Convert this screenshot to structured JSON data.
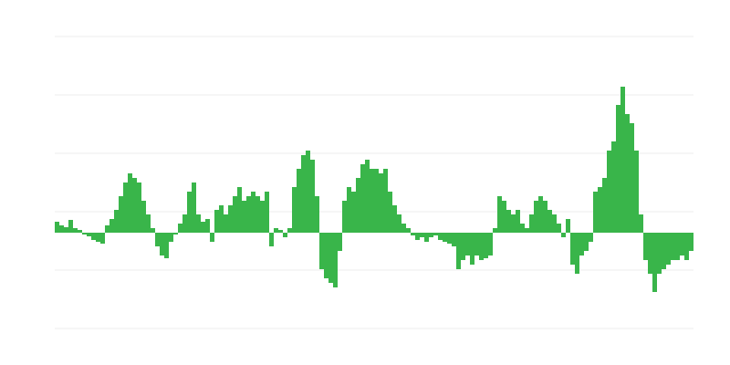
{
  "chart_data": {
    "type": "bar",
    "color": "#39b54a",
    "grid": true,
    "ylim": [
      -105,
      215
    ],
    "yticks": [
      -105,
      -41,
      23,
      87,
      151,
      215
    ],
    "values": [
      12,
      8,
      6,
      14,
      5,
      3,
      -2,
      -4,
      -8,
      -10,
      -12,
      8,
      15,
      25,
      40,
      55,
      65,
      60,
      55,
      35,
      20,
      5,
      -15,
      -25,
      -28,
      -10,
      -2,
      10,
      20,
      45,
      55,
      20,
      12,
      15,
      -10,
      25,
      30,
      20,
      30,
      40,
      50,
      35,
      40,
      45,
      40,
      35,
      45,
      -15,
      5,
      3,
      -5,
      5,
      50,
      70,
      85,
      90,
      80,
      40,
      -40,
      -50,
      -55,
      -60,
      -20,
      35,
      50,
      45,
      60,
      75,
      80,
      70,
      70,
      65,
      70,
      45,
      30,
      20,
      10,
      5,
      -3,
      -8,
      -5,
      -10,
      -5,
      -3,
      -8,
      -10,
      -12,
      -15,
      -40,
      -30,
      -25,
      -35,
      -25,
      -30,
      -28,
      -25,
      5,
      40,
      35,
      25,
      20,
      25,
      10,
      5,
      20,
      35,
      40,
      35,
      25,
      20,
      10,
      -5,
      15,
      -35,
      -45,
      -25,
      -20,
      -10,
      45,
      50,
      60,
      90,
      100,
      140,
      160,
      130,
      120,
      90,
      20,
      -30,
      -45,
      -65,
      -45,
      -40,
      -35,
      -30,
      -30,
      -25,
      -30,
      -20
    ]
  }
}
